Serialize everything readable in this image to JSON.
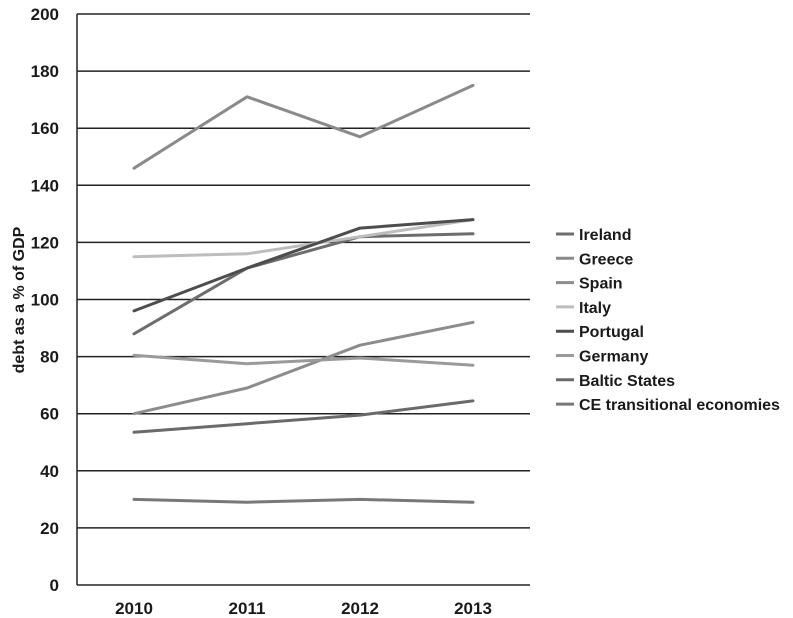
{
  "chart_data": {
    "type": "line",
    "title": "",
    "xlabel": "",
    "ylabel": "debt as a % of GDP",
    "categories": [
      "2010",
      "2011",
      "2012",
      "2013"
    ],
    "ylim": [
      0,
      200
    ],
    "yticks": [
      0,
      20,
      40,
      60,
      80,
      100,
      120,
      140,
      160,
      180,
      200
    ],
    "grid": true,
    "legend_position": "right",
    "series": [
      {
        "name": "Ireland",
        "color": "#6d6d6d",
        "values": [
          88,
          111,
          122,
          123
        ]
      },
      {
        "name": "Greece",
        "color": "#8a8a8a",
        "values": [
          146,
          171,
          157,
          175
        ]
      },
      {
        "name": "Spain",
        "color": "#8c8c8c",
        "values": [
          60,
          69,
          84,
          92
        ]
      },
      {
        "name": "Italy",
        "color": "#bdbdbd",
        "values": [
          115,
          116,
          122,
          128
        ]
      },
      {
        "name": "Portugal",
        "color": "#4d4d4d",
        "values": [
          96,
          111,
          125,
          128
        ]
      },
      {
        "name": "Germany",
        "color": "#9a9a9a",
        "values": [
          80.5,
          77.5,
          79.5,
          77
        ]
      },
      {
        "name": "Baltic States",
        "color": "#6a6a6a",
        "values": [
          53.5,
          56.5,
          59.5,
          64.5
        ]
      },
      {
        "name": "CE transitional economies",
        "color": "#787878",
        "values": [
          30,
          29,
          30,
          29
        ]
      }
    ]
  }
}
